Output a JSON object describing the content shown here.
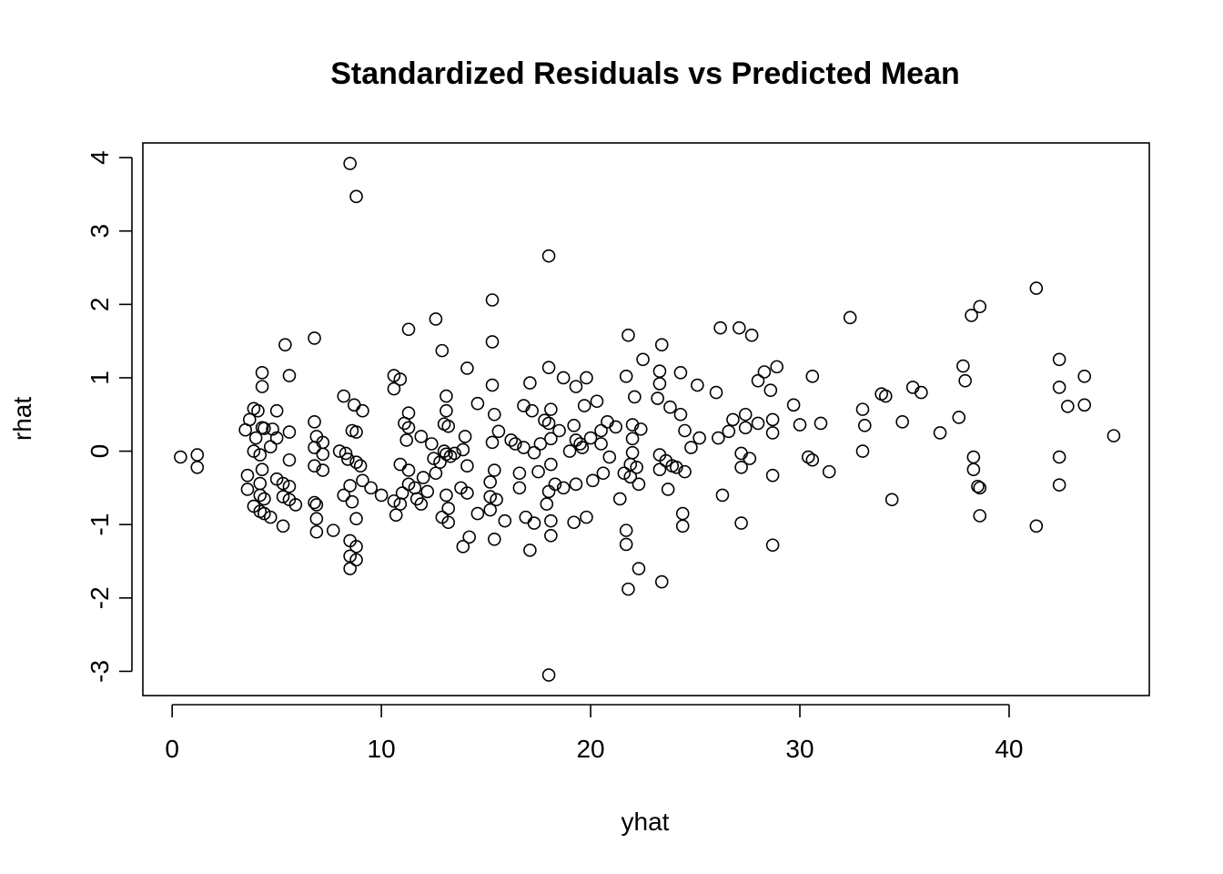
{
  "chart_data": {
    "type": "scatter",
    "title": "Standardized Residuals vs Predicted Mean",
    "xlabel": "yhat",
    "ylabel": "rhat",
    "xlim": [
      -1.4,
      46.7
    ],
    "ylim": [
      -3.33,
      4.2
    ],
    "xticks": [
      0,
      10,
      20,
      30,
      40
    ],
    "yticks": [
      -3,
      -2,
      -1,
      0,
      1,
      2,
      3,
      4
    ],
    "grid": false,
    "legend": "none",
    "marker": "open-circle",
    "points": [
      [
        0.4,
        -0.08
      ],
      [
        1.2,
        -0.05
      ],
      [
        1.2,
        -0.22
      ],
      [
        3.5,
        0.29
      ],
      [
        3.7,
        0.43
      ],
      [
        3.9,
        0.58
      ],
      [
        4.1,
        0.55
      ],
      [
        4.3,
        0.32
      ],
      [
        4.3,
        1.07
      ],
      [
        4.3,
        0.88
      ],
      [
        3.6,
        -0.33
      ],
      [
        3.6,
        -0.52
      ],
      [
        3.9,
        -0.75
      ],
      [
        4.2,
        -0.6
      ],
      [
        4.2,
        -0.82
      ],
      [
        4.3,
        -0.25
      ],
      [
        4.2,
        -0.44
      ],
      [
        4.4,
        -0.65
      ],
      [
        4.4,
        -0.85
      ],
      [
        4.7,
        -0.9
      ],
      [
        4.2,
        -0.05
      ],
      [
        4.0,
        0.18
      ],
      [
        3.9,
        0.0
      ],
      [
        4.4,
        0.31
      ],
      [
        4.7,
        0.06
      ],
      [
        5.0,
        0.18
      ],
      [
        5.0,
        0.55
      ],
      [
        4.8,
        0.3
      ],
      [
        5.0,
        -0.38
      ],
      [
        5.3,
        -0.44
      ],
      [
        5.3,
        -0.62
      ],
      [
        5.6,
        -0.48
      ],
      [
        5.6,
        -0.66
      ],
      [
        5.9,
        -0.73
      ],
      [
        5.6,
        -0.12
      ],
      [
        5.6,
        0.26
      ],
      [
        5.4,
        1.45
      ],
      [
        5.6,
        1.03
      ],
      [
        5.3,
        -1.02
      ],
      [
        6.8,
        1.54
      ],
      [
        6.8,
        0.4
      ],
      [
        6.8,
        0.05
      ],
      [
        6.8,
        -0.2
      ],
      [
        6.9,
        0.2
      ],
      [
        7.2,
        0.12
      ],
      [
        7.2,
        -0.04
      ],
      [
        7.2,
        -0.26
      ],
      [
        6.8,
        -0.7
      ],
      [
        6.9,
        -0.73
      ],
      [
        6.9,
        -0.92
      ],
      [
        6.9,
        -1.1
      ],
      [
        7.7,
        -1.08
      ],
      [
        8.0,
        0.0
      ],
      [
        8.2,
        0.75
      ],
      [
        8.3,
        -0.03
      ],
      [
        8.4,
        -0.11
      ],
      [
        8.2,
        -0.6
      ],
      [
        8.5,
        -1.22
      ],
      [
        8.5,
        -1.43
      ],
      [
        8.5,
        -1.6
      ],
      [
        8.5,
        -0.47
      ],
      [
        8.6,
        0.28
      ],
      [
        8.6,
        -0.69
      ],
      [
        8.7,
        0.63
      ],
      [
        8.8,
        0.26
      ],
      [
        8.8,
        -0.15
      ],
      [
        8.8,
        -0.92
      ],
      [
        8.8,
        -1.48
      ],
      [
        8.8,
        -1.3
      ],
      [
        9.0,
        -0.2
      ],
      [
        9.1,
        0.55
      ],
      [
        9.1,
        -0.4
      ],
      [
        8.5,
        3.92
      ],
      [
        8.8,
        3.47
      ],
      [
        9.5,
        -0.5
      ],
      [
        10.0,
        -0.6
      ],
      [
        10.6,
        1.03
      ],
      [
        10.6,
        0.85
      ],
      [
        10.9,
        0.98
      ],
      [
        10.9,
        -0.18
      ],
      [
        10.6,
        -0.68
      ],
      [
        10.7,
        -0.87
      ],
      [
        10.9,
        -0.72
      ],
      [
        11.0,
        -0.57
      ],
      [
        11.1,
        0.38
      ],
      [
        11.2,
        0.15
      ],
      [
        11.3,
        0.52
      ],
      [
        11.3,
        0.32
      ],
      [
        11.3,
        -0.26
      ],
      [
        11.3,
        -0.45
      ],
      [
        11.3,
        1.66
      ],
      [
        11.6,
        -0.5
      ],
      [
        11.7,
        -0.65
      ],
      [
        11.9,
        -0.72
      ],
      [
        11.9,
        0.2
      ],
      [
        12.0,
        -0.36
      ],
      [
        12.2,
        -0.55
      ],
      [
        12.4,
        0.1
      ],
      [
        12.5,
        -0.1
      ],
      [
        12.6,
        -0.3
      ],
      [
        12.6,
        1.8
      ],
      [
        12.8,
        -0.15
      ],
      [
        12.9,
        1.37
      ],
      [
        12.9,
        -0.9
      ],
      [
        13.0,
        0.0
      ],
      [
        13.0,
        0.37
      ],
      [
        13.1,
        0.75
      ],
      [
        13.1,
        0.55
      ],
      [
        13.2,
        0.34
      ],
      [
        13.1,
        -0.6
      ],
      [
        13.2,
        -0.78
      ],
      [
        13.2,
        -0.97
      ],
      [
        13.1,
        -0.04
      ],
      [
        13.3,
        -0.07
      ],
      [
        13.5,
        -0.03
      ],
      [
        13.8,
        -0.5
      ],
      [
        13.9,
        0.02
      ],
      [
        14.0,
        0.2
      ],
      [
        13.9,
        -1.3
      ],
      [
        14.1,
        -0.57
      ],
      [
        14.1,
        -0.2
      ],
      [
        14.1,
        1.13
      ],
      [
        14.2,
        -1.17
      ],
      [
        14.6,
        0.65
      ],
      [
        14.6,
        -0.85
      ],
      [
        15.2,
        -0.42
      ],
      [
        15.2,
        -0.62
      ],
      [
        15.2,
        -0.8
      ],
      [
        15.3,
        2.06
      ],
      [
        15.3,
        1.49
      ],
      [
        15.3,
        0.9
      ],
      [
        15.4,
        0.5
      ],
      [
        15.3,
        0.12
      ],
      [
        15.4,
        -0.26
      ],
      [
        15.4,
        -1.2
      ],
      [
        15.5,
        -0.66
      ],
      [
        15.6,
        0.27
      ],
      [
        15.9,
        -0.95
      ],
      [
        16.2,
        0.15
      ],
      [
        16.4,
        0.1
      ],
      [
        16.6,
        -0.3
      ],
      [
        16.6,
        -0.5
      ],
      [
        16.8,
        0.62
      ],
      [
        16.8,
        0.05
      ],
      [
        16.9,
        -0.9
      ],
      [
        17.1,
        0.93
      ],
      [
        17.1,
        -1.35
      ],
      [
        17.2,
        0.55
      ],
      [
        17.3,
        -0.02
      ],
      [
        17.3,
        -0.98
      ],
      [
        17.5,
        -0.28
      ],
      [
        17.6,
        0.1
      ],
      [
        17.8,
        0.42
      ],
      [
        17.9,
        -0.72
      ],
      [
        18.0,
        -0.55
      ],
      [
        18.0,
        0.38
      ],
      [
        18.0,
        1.14
      ],
      [
        18.1,
        0.57
      ],
      [
        18.1,
        0.17
      ],
      [
        18.1,
        -0.18
      ],
      [
        18.1,
        -0.95
      ],
      [
        18.1,
        -1.15
      ],
      [
        18.0,
        2.66
      ],
      [
        18.0,
        -3.05
      ],
      [
        18.3,
        -0.45
      ],
      [
        18.5,
        0.28
      ],
      [
        18.7,
        -0.5
      ],
      [
        18.7,
        1.0
      ],
      [
        19.0,
        0.0
      ],
      [
        19.2,
        -0.97
      ],
      [
        19.2,
        0.35
      ],
      [
        19.3,
        0.15
      ],
      [
        19.3,
        -0.45
      ],
      [
        19.3,
        0.88
      ],
      [
        19.5,
        0.1
      ],
      [
        19.6,
        0.05
      ],
      [
        19.7,
        0.62
      ],
      [
        19.8,
        -0.9
      ],
      [
        19.8,
        1.0
      ],
      [
        20.0,
        0.18
      ],
      [
        20.1,
        -0.4
      ],
      [
        20.3,
        0.68
      ],
      [
        20.5,
        0.1
      ],
      [
        20.5,
        0.28
      ],
      [
        20.6,
        -0.3
      ],
      [
        20.8,
        0.4
      ],
      [
        20.9,
        -0.08
      ],
      [
        21.2,
        0.33
      ],
      [
        21.4,
        -0.65
      ],
      [
        21.6,
        -0.3
      ],
      [
        21.7,
        1.02
      ],
      [
        21.7,
        -1.08
      ],
      [
        21.7,
        -1.27
      ],
      [
        21.8,
        1.58
      ],
      [
        21.8,
        -1.88
      ],
      [
        21.9,
        -0.18
      ],
      [
        21.9,
        -0.35
      ],
      [
        22.0,
        0.36
      ],
      [
        22.0,
        0.17
      ],
      [
        22.0,
        -0.02
      ],
      [
        22.1,
        0.74
      ],
      [
        22.2,
        -0.22
      ],
      [
        22.3,
        -0.45
      ],
      [
        22.3,
        -1.6
      ],
      [
        22.4,
        0.3
      ],
      [
        22.5,
        1.25
      ],
      [
        23.2,
        0.72
      ],
      [
        23.3,
        1.09
      ],
      [
        23.3,
        0.92
      ],
      [
        23.3,
        -0.05
      ],
      [
        23.3,
        -0.25
      ],
      [
        23.4,
        1.45
      ],
      [
        23.4,
        -1.78
      ],
      [
        23.6,
        -0.13
      ],
      [
        23.7,
        -0.52
      ],
      [
        23.8,
        0.6
      ],
      [
        23.9,
        -0.2
      ],
      [
        24.1,
        -0.22
      ],
      [
        24.3,
        1.07
      ],
      [
        24.3,
        0.5
      ],
      [
        24.4,
        -0.85
      ],
      [
        24.4,
        -1.02
      ],
      [
        24.5,
        0.28
      ],
      [
        24.5,
        -0.28
      ],
      [
        24.8,
        0.05
      ],
      [
        25.1,
        0.9
      ],
      [
        25.2,
        0.18
      ],
      [
        26.0,
        0.8
      ],
      [
        26.1,
        0.18
      ],
      [
        26.3,
        -0.6
      ],
      [
        26.2,
        1.68
      ],
      [
        26.6,
        0.27
      ],
      [
        26.8,
        0.43
      ],
      [
        27.1,
        1.68
      ],
      [
        27.2,
        -0.03
      ],
      [
        27.2,
        -0.22
      ],
      [
        27.2,
        -0.98
      ],
      [
        27.4,
        0.5
      ],
      [
        27.4,
        0.32
      ],
      [
        27.6,
        -0.1
      ],
      [
        27.7,
        1.58
      ],
      [
        28.0,
        0.38
      ],
      [
        28.0,
        0.96
      ],
      [
        28.3,
        1.08
      ],
      [
        28.6,
        0.83
      ],
      [
        28.7,
        0.43
      ],
      [
        28.7,
        0.25
      ],
      [
        28.7,
        -0.33
      ],
      [
        28.7,
        -1.28
      ],
      [
        28.9,
        1.15
      ],
      [
        29.7,
        0.63
      ],
      [
        30.0,
        0.36
      ],
      [
        30.4,
        -0.08
      ],
      [
        30.6,
        -0.12
      ],
      [
        30.6,
        1.02
      ],
      [
        31.0,
        0.38
      ],
      [
        31.4,
        -0.28
      ],
      [
        32.4,
        1.82
      ],
      [
        33.0,
        0.57
      ],
      [
        33.1,
        0.35
      ],
      [
        33.0,
        0.0
      ],
      [
        34.4,
        -0.66
      ],
      [
        34.9,
        0.4
      ],
      [
        33.9,
        0.78
      ],
      [
        34.1,
        0.75
      ],
      [
        35.4,
        0.87
      ],
      [
        35.8,
        0.8
      ],
      [
        36.7,
        0.25
      ],
      [
        37.6,
        0.46
      ],
      [
        37.8,
        1.16
      ],
      [
        37.9,
        0.96
      ],
      [
        38.2,
        1.85
      ],
      [
        38.3,
        -0.08
      ],
      [
        38.3,
        -0.25
      ],
      [
        38.5,
        -0.48
      ],
      [
        38.6,
        -0.5
      ],
      [
        38.6,
        -0.88
      ],
      [
        38.6,
        1.97
      ],
      [
        41.3,
        2.22
      ],
      [
        41.3,
        -1.02
      ],
      [
        42.4,
        1.25
      ],
      [
        42.4,
        0.87
      ],
      [
        42.4,
        -0.08
      ],
      [
        42.4,
        -0.46
      ],
      [
        42.8,
        0.61
      ],
      [
        43.6,
        1.02
      ],
      [
        43.6,
        0.63
      ],
      [
        45.0,
        0.21
      ]
    ]
  }
}
